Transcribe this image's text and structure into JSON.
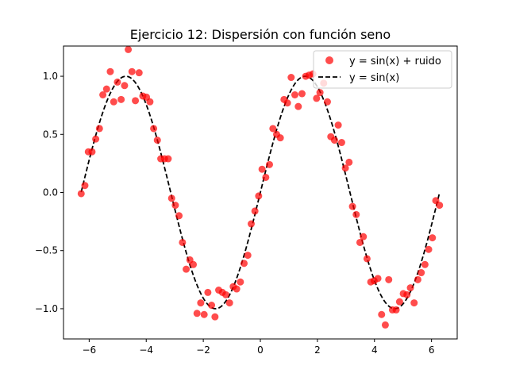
{
  "chart_data": {
    "type": "scatter",
    "title": "Ejercicio 12: Dispersión con función seno",
    "xlabel": "",
    "ylabel": "",
    "xlim": [
      -6.9,
      6.9
    ],
    "ylim": [
      -1.26,
      1.26
    ],
    "xticks": [
      -6,
      -4,
      -2,
      0,
      2,
      4,
      6
    ],
    "yticks": [
      -1.0,
      -0.5,
      0.0,
      0.5,
      1.0
    ],
    "xtick_labels": [
      "−6",
      "−4",
      "−2",
      "0",
      "2",
      "4",
      "6"
    ],
    "ytick_labels": [
      "−1.0",
      "−0.5",
      "0.0",
      "0.5",
      "1.0"
    ],
    "grid": false,
    "legend_position": "top-right",
    "series": [
      {
        "name": "y = sin(x) + ruido",
        "kind": "scatter",
        "color": "#ff0000",
        "x": [
          -6.28,
          -6.15,
          -6.03,
          -5.9,
          -5.77,
          -5.64,
          -5.52,
          -5.39,
          -5.26,
          -5.14,
          -5.01,
          -4.88,
          -4.76,
          -4.63,
          -4.5,
          -4.38,
          -4.25,
          -4.12,
          -3.99,
          -3.87,
          -3.74,
          -3.61,
          -3.49,
          -3.36,
          -3.23,
          -3.11,
          -2.98,
          -2.85,
          -2.73,
          -2.6,
          -2.47,
          -2.35,
          -2.22,
          -2.09,
          -1.97,
          -1.84,
          -1.71,
          -1.59,
          -1.46,
          -1.33,
          -1.21,
          -1.08,
          -0.95,
          -0.83,
          -0.7,
          -0.57,
          -0.44,
          -0.32,
          -0.19,
          -0.06,
          0.06,
          0.19,
          0.32,
          0.44,
          0.57,
          0.7,
          0.83,
          0.95,
          1.08,
          1.21,
          1.33,
          1.46,
          1.59,
          1.71,
          1.84,
          1.97,
          2.09,
          2.22,
          2.35,
          2.47,
          2.6,
          2.73,
          2.85,
          2.98,
          3.11,
          3.23,
          3.36,
          3.49,
          3.61,
          3.74,
          3.87,
          3.99,
          4.12,
          4.25,
          4.38,
          4.5,
          4.63,
          4.76,
          4.88,
          5.01,
          5.14,
          5.26,
          5.39,
          5.52,
          5.64,
          5.77,
          5.9,
          6.03,
          6.15,
          6.28
        ],
        "y": [
          -0.01,
          0.06,
          0.35,
          0.35,
          0.46,
          0.55,
          0.84,
          0.89,
          1.04,
          0.78,
          0.95,
          0.8,
          0.92,
          1.23,
          1.04,
          0.79,
          1.03,
          0.83,
          0.82,
          0.78,
          0.55,
          0.45,
          0.29,
          0.29,
          0.29,
          -0.05,
          -0.11,
          -0.2,
          -0.43,
          -0.66,
          -0.58,
          -0.62,
          -1.04,
          -0.95,
          -1.05,
          -0.86,
          -0.97,
          -1.07,
          -0.84,
          -0.86,
          -0.88,
          -0.95,
          -0.81,
          -0.83,
          -0.77,
          -0.61,
          -0.54,
          -0.27,
          -0.16,
          -0.03,
          0.2,
          0.13,
          0.24,
          0.55,
          0.5,
          0.47,
          0.8,
          0.77,
          0.99,
          0.84,
          0.74,
          0.85,
          1.0,
          1.01,
          1.02,
          0.81,
          0.86,
          0.94,
          0.78,
          0.48,
          0.45,
          0.58,
          0.43,
          0.21,
          0.26,
          -0.12,
          -0.19,
          -0.43,
          -0.38,
          -0.57,
          -0.77,
          -0.76,
          -0.74,
          -1.05,
          -1.14,
          -0.75,
          -1.01,
          -1.01,
          -0.94,
          -0.87,
          -0.88,
          -0.82,
          -0.95,
          -0.75,
          -0.69,
          -0.62,
          -0.49,
          -0.39,
          -0.07,
          -0.11
        ]
      },
      {
        "name": "y = sin(x)",
        "kind": "line",
        "color": "#000000",
        "style": "dashed",
        "function": "sin",
        "x_range": [
          -6.28,
          6.28
        ]
      }
    ]
  }
}
